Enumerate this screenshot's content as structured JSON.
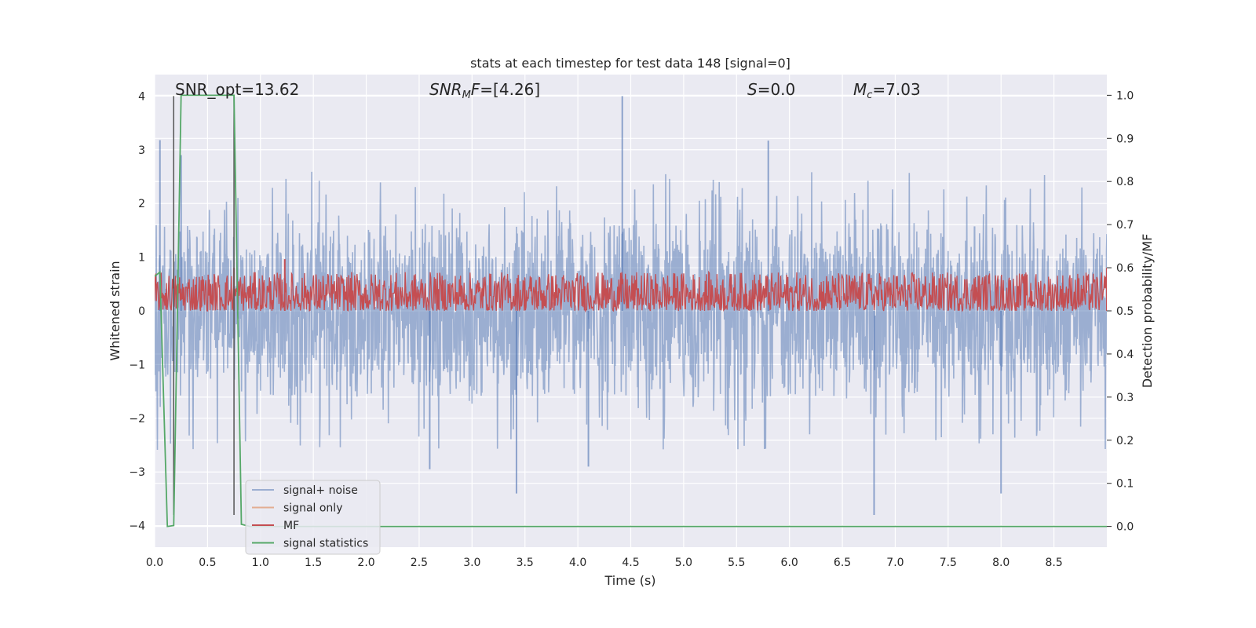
{
  "chart_data": {
    "type": "line",
    "title": "stats at each timestep for test data 148 [signal=0]",
    "xlabel": "Time (s)",
    "ylabel": "Whitened strain",
    "y2label": "Detection probability/MF",
    "xlim": [
      0.0,
      9.0
    ],
    "ylim": [
      -4.4,
      4.4
    ],
    "y2lim": [
      -0.048,
      1.048
    ],
    "xticks": [
      0.0,
      0.5,
      1.0,
      1.5,
      2.0,
      2.5,
      3.0,
      3.5,
      4.0,
      4.5,
      5.0,
      5.5,
      6.0,
      6.5,
      7.0,
      7.5,
      8.0,
      8.5
    ],
    "xtick_labels": [
      "0.0",
      "0.5",
      "1.0",
      "1.5",
      "2.0",
      "2.5",
      "3.0",
      "3.5",
      "4.0",
      "4.5",
      "5.0",
      "5.5",
      "6.0",
      "6.5",
      "7.0",
      "7.5",
      "8.0",
      "8.5"
    ],
    "yticks": [
      4,
      3,
      2,
      1,
      0,
      -1,
      -2,
      -3,
      -4
    ],
    "ytick_labels": [
      "4",
      "3",
      "2",
      "1",
      "0",
      "−1",
      "−2",
      "−3",
      "−4"
    ],
    "y2ticks": [
      1.0,
      0.9,
      0.8,
      0.7,
      0.6,
      0.5,
      0.4,
      0.3,
      0.2,
      0.1,
      0.0
    ],
    "y2tick_labels": [
      "1.0",
      "0.9",
      "0.8",
      "0.7",
      "0.6",
      "0.5",
      "0.4",
      "0.3",
      "0.2",
      "0.1",
      "0.0"
    ],
    "grid": true,
    "legend_position": "lower-left",
    "annotations": [
      {
        "id": "snr-opt",
        "text": "SNR_opt=13.62"
      },
      {
        "id": "snr-mf",
        "text": "SNR_MF=[4.26]"
      },
      {
        "id": "s-value",
        "text": "S=0.0"
      },
      {
        "id": "mc-value",
        "text": "M_c=7.03"
      }
    ],
    "vlines": [
      {
        "x": 0.18,
        "y_top": 4.0,
        "y_bottom": -3.8,
        "color": "#555555"
      },
      {
        "x": 0.75,
        "y_top": 4.0,
        "y_bottom": -3.8,
        "color": "#555555"
      }
    ],
    "series": [
      {
        "name": "signal+ noise",
        "axis": "left",
        "color": "#4c72b0",
        "opacity": 0.5,
        "kind": "noise",
        "approx_envelope": {
          "typical_peak": 1.6,
          "max": 4.0,
          "min": -3.8
        },
        "notable_extremes": [
          {
            "x": 4.42,
            "y": 4.0
          },
          {
            "x": 0.05,
            "y": 3.18
          },
          {
            "x": 5.8,
            "y": 3.17
          },
          {
            "x": 0.25,
            "y": 2.9
          },
          {
            "x": 6.8,
            "y": -3.8
          },
          {
            "x": 3.42,
            "y": -3.4
          },
          {
            "x": 8.0,
            "y": -3.4
          },
          {
            "x": 2.6,
            "y": -2.95
          },
          {
            "x": 4.1,
            "y": -2.9
          }
        ]
      },
      {
        "name": "signal only",
        "axis": "left",
        "color": "#dd8452",
        "values": []
      },
      {
        "name": "MF",
        "axis": "right",
        "color": "#c44e52",
        "kind": "noise",
        "approx_range": [
          0.5,
          0.59
        ],
        "notable_extremes": [
          {
            "x": 1.23,
            "y": 0.62
          },
          {
            "x": 0.75,
            "y": 0.6
          },
          {
            "x": 9.0,
            "y": 0.6
          }
        ]
      },
      {
        "name": "signal statistics",
        "axis": "right",
        "color": "#55a868",
        "x": [
          0.0,
          0.05,
          0.12,
          0.18,
          0.25,
          0.75,
          0.82,
          0.9,
          9.0
        ],
        "y": [
          0.58,
          0.59,
          0.0,
          0.002,
          1.0,
          1.0,
          0.005,
          0.0,
          0.0
        ]
      }
    ]
  }
}
